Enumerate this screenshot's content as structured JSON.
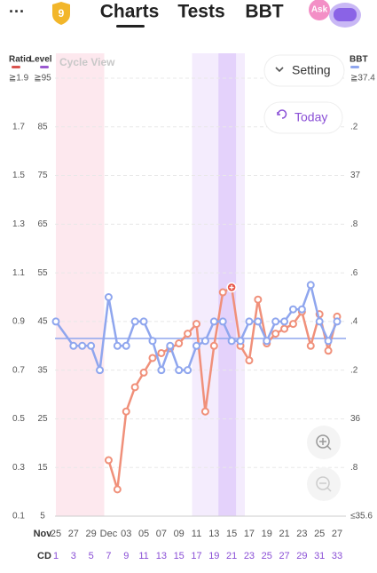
{
  "header": {
    "menu": "···",
    "badge": "9",
    "tabs": [
      "Charts",
      "Tests",
      "BBT"
    ],
    "ask": "Ask"
  },
  "buttons": {
    "setting": "Setting",
    "today": "Today"
  },
  "chart_data": {
    "type": "line",
    "annotation": "Cycle View",
    "y_axis_label": "Ratio",
    "y3_axis_label": "Level",
    "y2_axis_label": "BBT",
    "legend_colors": {
      "ratio": "#d9534f",
      "level": "#9b59d0",
      "bbt": "#8fa6ee"
    },
    "ylim": [
      0.1,
      1.9
    ],
    "yticks": [
      {
        "value": 1.9,
        "label": "≧1.9"
      },
      1.7,
      1.5,
      1.3,
      1.1,
      0.9,
      0.7,
      0.5,
      0.3,
      0.1
    ],
    "y3lim": [
      5,
      95
    ],
    "y3ticks": [
      {
        "value": 95,
        "label": "≧95"
      },
      85,
      75,
      65,
      55,
      45,
      35,
      25,
      15,
      5
    ],
    "y2lim": [
      35.6,
      37.4
    ],
    "y2ticks": [
      {
        "value": 37.4,
        "label": "≧37.4"
      },
      {
        "value": 37.2,
        "label": ".2"
      },
      37,
      {
        "value": 36.8,
        "label": ".8"
      },
      {
        "value": 36.6,
        "label": ".6"
      },
      {
        "value": 36.4,
        "label": ".4"
      },
      {
        "value": 36.2,
        "label": ".2"
      },
      36,
      {
        "value": 35.8,
        "label": ".8"
      },
      {
        "value": 35.6,
        "label": "≤35.6"
      }
    ],
    "grid": true,
    "xlim": [
      1,
      33
    ],
    "x_month_label": "Nov",
    "xticks": [
      {
        "value": 1,
        "label": "25"
      },
      {
        "value": 3,
        "label": "27"
      },
      {
        "value": 5,
        "label": "29"
      },
      {
        "value": 7,
        "label": "Dec"
      },
      {
        "value": 9,
        "label": "03"
      },
      {
        "value": 11,
        "label": "05"
      },
      {
        "value": 13,
        "label": "07"
      },
      {
        "value": 15,
        "label": "09"
      },
      {
        "value": 17,
        "label": "11"
      },
      {
        "value": 19,
        "label": "13"
      },
      {
        "value": 21,
        "label": "15"
      },
      {
        "value": 23,
        "label": "17"
      },
      {
        "value": 25,
        "label": "19"
      },
      {
        "value": 27,
        "label": "21"
      },
      {
        "value": 29,
        "label": "23"
      },
      {
        "value": 31,
        "label": "25"
      },
      {
        "value": 33,
        "label": "27"
      }
    ],
    "cd_label": "CD",
    "cd_ticks": [
      1,
      3,
      5,
      7,
      9,
      11,
      13,
      15,
      17,
      19,
      21,
      23,
      25,
      27,
      29,
      31,
      33
    ],
    "bands": [
      {
        "start": 1,
        "end": 6.5,
        "color": "#fde8ee"
      },
      {
        "start": 16.5,
        "end": 22.5,
        "color": "#f4ecfd"
      },
      {
        "start": 19.5,
        "end": 21.5,
        "color": "#e4d2fb"
      }
    ],
    "coverline": 36.33,
    "coverline_color": "#8fa6ee",
    "peak": {
      "x": 21,
      "color": "#e8574a"
    },
    "series": [
      {
        "name": "Ratio",
        "color": "#f0907a",
        "x": [
          7,
          8,
          9,
          10,
          11,
          12,
          13,
          14,
          15,
          16,
          17,
          18,
          19,
          20,
          21,
          22,
          23,
          24,
          25,
          26,
          27,
          28,
          29,
          30,
          31,
          32,
          33
        ],
        "values": [
          0.33,
          0.21,
          0.53,
          0.63,
          0.69,
          0.75,
          0.77,
          0.79,
          0.81,
          0.85,
          0.89,
          0.53,
          0.8,
          1.02,
          1.04,
          0.8,
          0.74,
          0.99,
          0.81,
          0.85,
          0.87,
          0.89,
          0.94,
          0.8,
          0.93,
          0.78,
          0.92
        ]
      },
      {
        "name": "BBT",
        "color": "#8fa6ee",
        "axis": "y2",
        "x": [
          1,
          3,
          4,
          5,
          6,
          7,
          8,
          9,
          10,
          11,
          12,
          13,
          14,
          15,
          16,
          17,
          18,
          19,
          20,
          21,
          22,
          23,
          24,
          25,
          26,
          27,
          28,
          29,
          30,
          31,
          32,
          33
        ],
        "values": [
          36.4,
          36.3,
          36.3,
          36.3,
          36.2,
          36.5,
          36.3,
          36.3,
          36.4,
          36.4,
          36.32,
          36.2,
          36.3,
          36.2,
          36.2,
          36.3,
          36.32,
          36.4,
          36.4,
          36.32,
          36.32,
          36.4,
          36.4,
          36.32,
          36.4,
          36.4,
          36.45,
          36.45,
          36.55,
          36.4,
          36.32,
          36.4
        ]
      }
    ]
  }
}
